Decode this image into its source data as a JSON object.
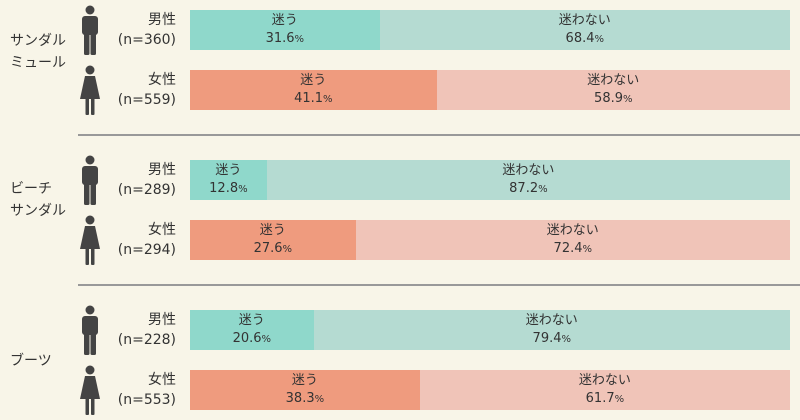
{
  "legend": {
    "yes_label": "迷う",
    "no_label": "迷わない"
  },
  "colors": {
    "male_yes": "#8fd8cb",
    "male_no": "#b5dbd2",
    "female_yes": "#ef9b7e",
    "female_no": "#f0c4b8",
    "icon": "#444444",
    "divider": "#999999"
  },
  "chart_data": {
    "type": "bar",
    "orientation": "horizontal",
    "stacked": true,
    "percent_sign": "%",
    "categories": [
      {
        "label": "サンダル\nミュール",
        "rows": [
          {
            "gender": "男性",
            "n": "(n=360)",
            "icon": "male-icon",
            "yes": 31.6,
            "no": 68.4
          },
          {
            "gender": "女性",
            "n": "(n=559)",
            "icon": "female-icon",
            "yes": 41.1,
            "no": 58.9
          }
        ]
      },
      {
        "label": "ビーチ\nサンダル",
        "rows": [
          {
            "gender": "男性",
            "n": "(n=289)",
            "icon": "male-icon",
            "yes": 12.8,
            "no": 87.2
          },
          {
            "gender": "女性",
            "n": "(n=294)",
            "icon": "female-icon",
            "yes": 27.6,
            "no": 72.4
          }
        ]
      },
      {
        "label": "ブーツ",
        "rows": [
          {
            "gender": "男性",
            "n": "(n=228)",
            "icon": "male-icon",
            "yes": 20.6,
            "no": 79.4
          },
          {
            "gender": "女性",
            "n": "(n=553)",
            "icon": "female-icon",
            "yes": 38.3,
            "no": 61.7
          }
        ]
      }
    ]
  }
}
